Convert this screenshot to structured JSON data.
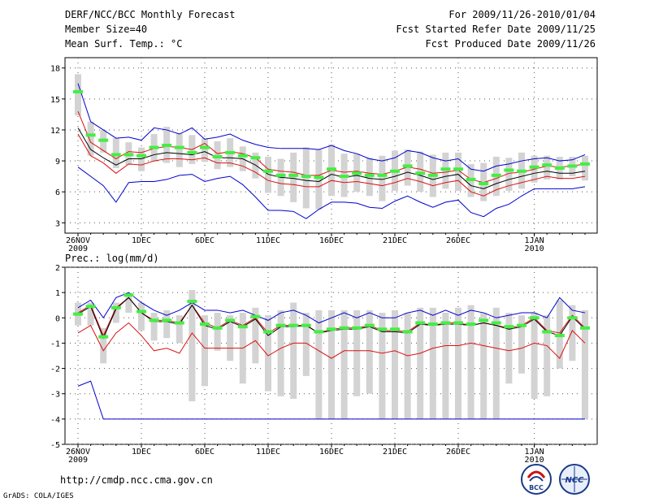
{
  "header": {
    "title_line1": "DERF/NCC/BCC Monthly Forecast",
    "title_line2": "Member Size=40",
    "title_line3": "Mean Surf. Temp.: °C",
    "right_line1": "For 2009/11/26-2010/01/04",
    "right_line2": "Fcst Started Refer Date 2009/11/25",
    "right_line3": "Fcst Produced Date 2009/11/26"
  },
  "footer": {
    "url": "http://cmdp.ncc.cma.gov.cn",
    "credit": "GrADS: COLA/IGES",
    "logo_bcc": "BCC",
    "logo_ncc": "NCC"
  },
  "colors": {
    "box": "#d3d3d3",
    "median": "#44ee44",
    "max": "#0000cc",
    "min": "#0000cc",
    "pct": "#dd1111",
    "mean": "#000000"
  },
  "chart_data": [
    {
      "type": "line",
      "title": "Mean Surf. Temp.: °C",
      "days": 40,
      "ylim": [
        2,
        19
      ],
      "yticks": [
        "3",
        "6",
        "9",
        "12",
        "15",
        "18"
      ],
      "ytick_values": [
        3,
        6,
        9,
        12,
        15,
        18
      ],
      "xtick_labels": [
        {
          "day": 0,
          "label": "26NOV",
          "sub": "2009"
        },
        {
          "day": 5,
          "label": "1DEC",
          "sub": ""
        },
        {
          "day": 10,
          "label": "6DEC",
          "sub": ""
        },
        {
          "day": 15,
          "label": "11DEC",
          "sub": ""
        },
        {
          "day": 20,
          "label": "16DEC",
          "sub": ""
        },
        {
          "day": 25,
          "label": "21DEC",
          "sub": ""
        },
        {
          "day": 30,
          "label": "26DEC",
          "sub": ""
        },
        {
          "day": 36,
          "label": "1JAN",
          "sub": "2010"
        }
      ],
      "median": [
        15.7,
        11.5,
        11.0,
        9.6,
        9.6,
        9.5,
        10.3,
        10.5,
        10.3,
        9.8,
        10.3,
        9.4,
        9.8,
        9.5,
        9.3,
        8.0,
        7.6,
        7.6,
        7.5,
        7.4,
        8.2,
        7.5,
        7.8,
        7.6,
        7.6,
        8.0,
        8.5,
        7.8,
        7.6,
        8.2,
        8.2,
        7.2,
        6.8,
        7.6,
        8.1,
        8.0,
        8.4,
        8.6,
        8.3,
        8.5,
        8.7
      ],
      "box_low": [
        13.4,
        9.5,
        9.8,
        8.3,
        8.6,
        8.0,
        8.9,
        8.8,
        8.4,
        8.7,
        8.9,
        8.2,
        8.4,
        8.0,
        7.3,
        5.9,
        5.6,
        5.0,
        4.4,
        4.3,
        5.6,
        5.5,
        6.0,
        5.6,
        5.1,
        6.1,
        6.6,
        6.0,
        5.5,
        6.3,
        6.1,
        5.5,
        5.1,
        5.6,
        6.1,
        6.3,
        6.9,
        7.2,
        7.2,
        7.5,
        7.1
      ],
      "box_high": [
        17.4,
        12.8,
        12.0,
        11.2,
        10.8,
        10.3,
        11.6,
        12.3,
        11.7,
        11.5,
        11.2,
        10.9,
        11.2,
        10.4,
        9.8,
        9.4,
        9.2,
        9.8,
        10.3,
        10.1,
        10.6,
        9.7,
        9.7,
        9.3,
        9.5,
        10.0,
        10.1,
        9.9,
        9.6,
        9.8,
        9.8,
        8.7,
        8.8,
        9.4,
        9.3,
        9.8,
        9.5,
        9.5,
        9.4,
        9.4,
        9.5
      ],
      "max": [
        16.5,
        12.8,
        12.0,
        11.2,
        11.3,
        11.0,
        12.2,
        12.0,
        11.6,
        12.2,
        11.1,
        11.3,
        11.6,
        11.0,
        10.6,
        10.3,
        10.2,
        10.2,
        10.2,
        10.1,
        10.5,
        10.0,
        9.7,
        9.2,
        9.0,
        9.3,
        10.0,
        9.8,
        9.3,
        9.0,
        9.2,
        8.2,
        8.0,
        8.5,
        8.7,
        9.0,
        9.2,
        9.3,
        9.0,
        9.1,
        9.6
      ],
      "pct_high": [
        13.8,
        10.8,
        10.0,
        9.2,
        9.9,
        9.8,
        10.2,
        10.4,
        10.3,
        10.1,
        10.7,
        9.7,
        9.9,
        9.7,
        9.3,
        8.2,
        8.0,
        7.9,
        7.6,
        7.6,
        8.1,
        7.9,
        8.0,
        7.8,
        7.7,
        8.0,
        8.4,
        8.2,
        7.8,
        7.9,
        8.1,
        7.2,
        6.9,
        7.3,
        7.8,
        7.9,
        8.2,
        8.5,
        8.4,
        8.5,
        8.7
      ],
      "mean": [
        12.2,
        10.1,
        9.3,
        8.6,
        9.2,
        9.2,
        9.6,
        9.8,
        9.7,
        9.6,
        9.9,
        9.3,
        9.3,
        9.2,
        8.6,
        7.7,
        7.4,
        7.3,
        7.1,
        7.0,
        7.7,
        7.4,
        7.6,
        7.3,
        7.2,
        7.5,
        7.9,
        7.6,
        7.2,
        7.5,
        7.7,
        6.6,
        6.3,
        6.8,
        7.2,
        7.5,
        7.8,
        8.0,
        7.8,
        7.8,
        8.0
      ],
      "pct_low": [
        11.6,
        9.5,
        8.8,
        7.8,
        8.7,
        8.6,
        9.0,
        9.2,
        9.2,
        9.1,
        9.3,
        8.8,
        8.8,
        8.5,
        7.9,
        7.1,
        6.8,
        6.7,
        6.5,
        6.5,
        7.1,
        6.9,
        7.0,
        6.8,
        6.6,
        6.9,
        7.3,
        7.0,
        6.6,
        6.9,
        7.1,
        6.0,
        5.6,
        6.2,
        6.6,
        6.9,
        7.2,
        7.5,
        7.3,
        7.3,
        7.5
      ],
      "min": [
        8.4,
        7.5,
        6.6,
        5.0,
        6.9,
        7.0,
        7.0,
        7.2,
        7.6,
        7.7,
        7.0,
        7.3,
        7.5,
        6.7,
        5.5,
        4.2,
        4.2,
        4.1,
        3.4,
        4.3,
        5.0,
        5.0,
        4.9,
        4.5,
        4.4,
        5.1,
        5.6,
        5.0,
        4.5,
        5.0,
        5.2,
        4.0,
        3.6,
        4.4,
        4.8,
        5.6,
        6.3,
        6.3,
        6.3,
        6.3,
        6.5
      ]
    },
    {
      "type": "line",
      "title": "Prec.: log(mm/d)",
      "days": 40,
      "ylim": [
        -5,
        2
      ],
      "yticks": [
        "-5",
        "-4",
        "-3",
        "-2",
        "-1",
        "0",
        "1",
        "2"
      ],
      "ytick_values": [
        -5,
        -4,
        -3,
        -2,
        -1,
        0,
        1,
        2
      ],
      "xtick_labels": [
        {
          "day": 0,
          "label": "26NOV",
          "sub": "2009"
        },
        {
          "day": 5,
          "label": "1DEC",
          "sub": ""
        },
        {
          "day": 10,
          "label": "6DEC",
          "sub": ""
        },
        {
          "day": 15,
          "label": "11DEC",
          "sub": ""
        },
        {
          "day": 20,
          "label": "16DEC",
          "sub": ""
        },
        {
          "day": 25,
          "label": "21DEC",
          "sub": ""
        },
        {
          "day": 30,
          "label": "26DEC",
          "sub": ""
        },
        {
          "day": 36,
          "label": "1JAN",
          "sub": "2010"
        }
      ],
      "median": [
        0.15,
        0.45,
        -0.75,
        0.4,
        0.9,
        0.25,
        -0.1,
        -0.1,
        -0.2,
        0.65,
        -0.25,
        -0.4,
        -0.1,
        -0.35,
        0.05,
        -0.55,
        -0.3,
        -0.3,
        -0.3,
        -0.55,
        -0.45,
        -0.4,
        -0.4,
        -0.3,
        -0.45,
        -0.45,
        -0.55,
        -0.2,
        -0.25,
        -0.2,
        -0.2,
        -0.25,
        -0.1,
        -0.2,
        -0.35,
        -0.3,
        0.0,
        -0.55,
        -0.7,
        0.0,
        -0.4
      ],
      "box_low": [
        -0.3,
        -0.3,
        -1.8,
        -0.2,
        0.2,
        -0.5,
        -0.9,
        -0.8,
        -1.0,
        -3.3,
        -2.7,
        -1.3,
        -1.7,
        -2.6,
        -1.8,
        -2.9,
        -3.1,
        -3.2,
        -2.3,
        -4.0,
        -4.0,
        -4.0,
        -3.1,
        -3.0,
        -4.0,
        -4.0,
        -4.0,
        -4.0,
        -4.0,
        -4.0,
        -4.0,
        -4.0,
        -4.0,
        -4.0,
        -2.6,
        -2.2,
        -3.2,
        -3.1,
        -2.0,
        -1.7,
        -4.0
      ],
      "box_high": [
        0.6,
        0.6,
        -0.4,
        0.6,
        1.0,
        0.6,
        0.2,
        0.3,
        0.1,
        1.1,
        0.1,
        0.2,
        0.1,
        0.2,
        0.4,
        0.1,
        0.3,
        0.6,
        0.2,
        0.3,
        0.3,
        0.3,
        0.3,
        0.3,
        0.2,
        0.3,
        0.2,
        0.4,
        0.4,
        0.2,
        0.4,
        0.5,
        0.2,
        0.4,
        0.2,
        0.1,
        0.2,
        0.1,
        0.7,
        0.5,
        0.3
      ],
      "max": [
        0.4,
        0.7,
        0.0,
        0.8,
        1.0,
        0.6,
        0.3,
        0.1,
        0.3,
        0.6,
        0.3,
        0.3,
        0.2,
        0.3,
        0.1,
        -0.1,
        0.2,
        0.3,
        0.1,
        -0.2,
        0.0,
        0.2,
        0.0,
        0.2,
        0.0,
        0.0,
        0.2,
        0.3,
        0.1,
        0.3,
        0.1,
        0.3,
        0.2,
        0.0,
        0.1,
        0.2,
        0.2,
        0.0,
        0.8,
        0.3,
        0.2
      ],
      "pct_high": [
        0.2,
        0.5,
        -0.7,
        0.4,
        0.8,
        0.2,
        -0.1,
        -0.1,
        -0.2,
        0.5,
        -0.2,
        -0.4,
        -0.1,
        -0.3,
        0.0,
        -0.6,
        -0.3,
        -0.3,
        -0.3,
        -0.6,
        -0.45,
        -0.4,
        -0.4,
        -0.3,
        -0.5,
        -0.5,
        -0.55,
        -0.2,
        -0.3,
        -0.2,
        -0.2,
        -0.3,
        -0.2,
        -0.3,
        -0.4,
        -0.3,
        0.0,
        -0.5,
        -0.6,
        0.1,
        -0.4
      ],
      "mean": [
        0.15,
        0.45,
        -0.8,
        0.35,
        0.8,
        0.2,
        -0.15,
        -0.15,
        -0.25,
        0.5,
        -0.3,
        -0.45,
        -0.15,
        -0.35,
        -0.05,
        -0.7,
        -0.35,
        -0.35,
        -0.3,
        -0.6,
        -0.5,
        -0.45,
        -0.45,
        -0.35,
        -0.55,
        -0.55,
        -0.6,
        -0.25,
        -0.3,
        -0.25,
        -0.25,
        -0.3,
        -0.2,
        -0.3,
        -0.45,
        -0.35,
        -0.05,
        -0.55,
        -0.7,
        0.05,
        -0.45
      ],
      "pct_low": [
        -0.6,
        -0.3,
        -1.3,
        -0.6,
        -0.2,
        -0.7,
        -1.3,
        -1.2,
        -1.4,
        -0.6,
        -1.2,
        -1.2,
        -1.2,
        -1.2,
        -0.9,
        -1.5,
        -1.2,
        -1.0,
        -1.0,
        -1.3,
        -1.6,
        -1.3,
        -1.3,
        -1.3,
        -1.4,
        -1.3,
        -1.5,
        -1.4,
        -1.2,
        -1.1,
        -1.1,
        -1.0,
        -1.1,
        -1.2,
        -1.3,
        -1.2,
        -1.0,
        -1.1,
        -1.6,
        -0.5,
        -1.0
      ],
      "min": [
        -2.7,
        -2.5,
        -4.0,
        -4.0,
        -4.0,
        -4.0,
        -4.0,
        -4.0,
        -4.0,
        -4.0,
        -4.0,
        -4.0,
        -4.0,
        -4.0,
        -4.0,
        -4.0,
        -4.0,
        -4.0,
        -4.0,
        -4.0,
        -4.0,
        -4.0,
        -4.0,
        -4.0,
        -4.0,
        -4.0,
        -4.0,
        -4.0,
        -4.0,
        -4.0,
        -4.0,
        -4.0,
        -4.0,
        -4.0,
        -4.0,
        -4.0,
        -4.0,
        -4.0,
        -4.0,
        -4.0,
        -4.0
      ]
    }
  ]
}
